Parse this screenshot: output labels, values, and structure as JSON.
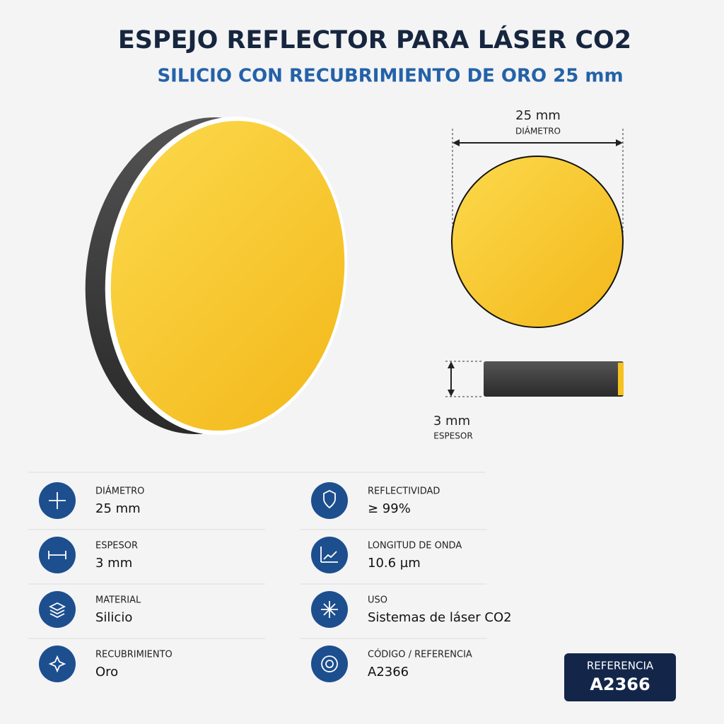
{
  "header": {
    "title": "ESPEJO REFLECTOR PARA LÁSER CO2",
    "subtitle": "SILICIO CON RECUBRIMIENTO DE ORO 25 mm"
  },
  "dimensions": {
    "diameter": {
      "value": "25 mm",
      "label": "DIÁMETRO"
    },
    "thickness": {
      "value": "3 mm",
      "label": "ESPESOR"
    }
  },
  "specs": [
    {
      "label": "DIÁMETRO",
      "value": "25 mm"
    },
    {
      "label": "REFLECTIVIDAD",
      "value": "≥ 99%"
    },
    {
      "label": "ESPESOR",
      "value": "3 mm"
    },
    {
      "label": "LONGITUD DE ONDA",
      "value": "10.6 µm"
    },
    {
      "label": "MATERIAL",
      "value": "Silicio"
    },
    {
      "label": "USO",
      "value": "Sistemas de láser CO2"
    },
    {
      "label": "RECUBRIMIENTO",
      "value": "Oro"
    },
    {
      "label": "CÓDIGO / REFERENCIA",
      "value": "A2366"
    }
  ],
  "badge": {
    "label": "REFERENCIA",
    "value": "A2366"
  }
}
